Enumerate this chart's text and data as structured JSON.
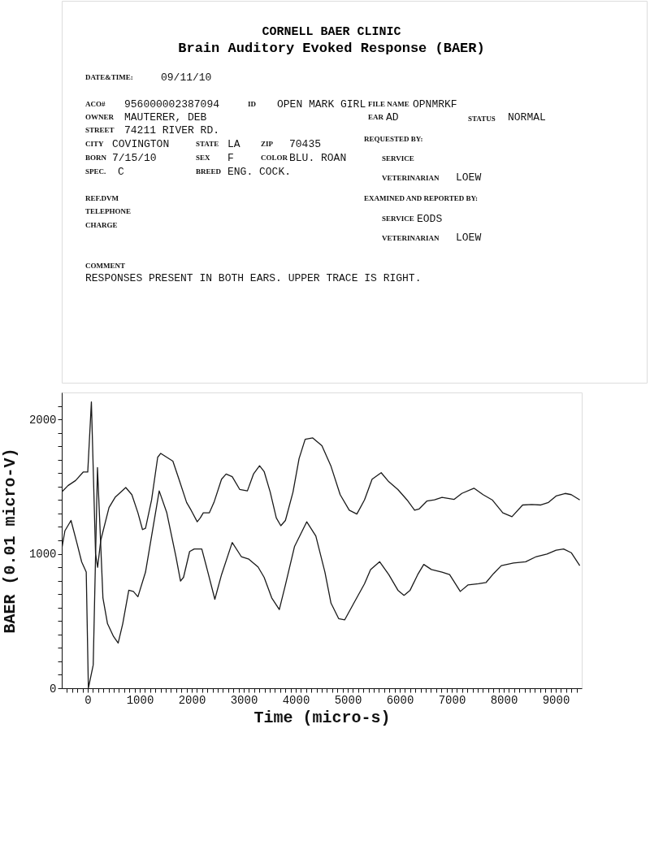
{
  "chart_data": {
    "type": "line",
    "title": "CORNELL BAER CLINIC",
    "subtitle": "Brain Auditory Evoked Response (BAER)",
    "annotations": [
      "DATE&TIME:",
      "09/11/10",
      "ACO#",
      "956000002387094",
      "ID",
      "OPEN MARK GIRL",
      "FILE NAME",
      "OPNMRKF",
      "OWNER",
      "MAUTERER, DEB",
      "EAR",
      "AD",
      "STATUS",
      "NORMAL",
      "STREET",
      "74211 RIVER RD.",
      "CITY",
      "COVINGTON",
      "STATE",
      "LA",
      "ZIP",
      "70435",
      "REQUESTED BY:",
      "BORN",
      "7/15/10",
      "SEX",
      "F",
      "COLOR",
      "BLU. ROAN",
      "SERVICE",
      "SPEC.",
      "C",
      "BREED",
      "ENG. COCK.",
      "VETERINARIAN",
      "LOEW",
      "REF.DVM",
      "EXAMINED AND REPORTED BY:",
      "TELEPHONE",
      "CHARGE",
      "SERVICE",
      "EODS",
      "VETERINARIAN",
      "LOEW",
      "COMMENT",
      "RESPONSES PRESENT IN BOTH EARS.  UPPER TRACE IS RIGHT."
    ],
    "xlabel": "Time (micro-s)",
    "ylabel": "BAER (0.01 micro-V)",
    "xlim": [
      -500,
      9500
    ],
    "ylim": [
      0,
      2200
    ],
    "xticks": [
      {
        "value": -400,
        "label": null
      },
      {
        "value": -300,
        "label": null
      },
      {
        "value": -200,
        "label": null
      },
      {
        "value": -100,
        "label": null
      },
      0,
      {
        "value": 100,
        "label": null
      },
      {
        "value": 200,
        "label": null
      },
      {
        "value": 300,
        "label": null
      },
      {
        "value": 400,
        "label": null
      },
      {
        "value": 500,
        "label": null
      },
      {
        "value": 600,
        "label": null
      },
      {
        "value": 700,
        "label": null
      },
      {
        "value": 800,
        "label": null
      },
      {
        "value": 900,
        "label": null
      },
      1000,
      {
        "value": 1100,
        "label": null
      },
      {
        "value": 1200,
        "label": null
      },
      {
        "value": 1300,
        "label": null
      },
      {
        "value": 1400,
        "label": null
      },
      {
        "value": 1500,
        "label": null
      },
      {
        "value": 1600,
        "label": null
      },
      {
        "value": 1700,
        "label": null
      },
      {
        "value": 1800,
        "label": null
      },
      {
        "value": 1900,
        "label": null
      },
      2000,
      {
        "value": 2100,
        "label": null
      },
      {
        "value": 2200,
        "label": null
      },
      {
        "value": 2300,
        "label": null
      },
      {
        "value": 2400,
        "label": null
      },
      {
        "value": 2500,
        "label": null
      },
      {
        "value": 2600,
        "label": null
      },
      {
        "value": 2700,
        "label": null
      },
      {
        "value": 2800,
        "label": null
      },
      {
        "value": 2900,
        "label": null
      },
      3000,
      {
        "value": 3100,
        "label": null
      },
      {
        "value": 3200,
        "label": null
      },
      {
        "value": 3300,
        "label": null
      },
      {
        "value": 3400,
        "label": null
      },
      {
        "value": 3500,
        "label": null
      },
      {
        "value": 3600,
        "label": null
      },
      {
        "value": 3700,
        "label": null
      },
      {
        "value": 3800,
        "label": null
      },
      {
        "value": 3900,
        "label": null
      },
      4000,
      {
        "value": 4100,
        "label": null
      },
      {
        "value": 4200,
        "label": null
      },
      {
        "value": 4300,
        "label": null
      },
      {
        "value": 4400,
        "label": null
      },
      {
        "value": 4500,
        "label": null
      },
      {
        "value": 4600,
        "label": null
      },
      {
        "value": 4700,
        "label": null
      },
      {
        "value": 4800,
        "label": null
      },
      {
        "value": 4900,
        "label": null
      },
      5000,
      {
        "value": 5100,
        "label": null
      },
      {
        "value": 5200,
        "label": null
      },
      {
        "value": 5300,
        "label": null
      },
      {
        "value": 5400,
        "label": null
      },
      {
        "value": 5500,
        "label": null
      },
      {
        "value": 5600,
        "label": null
      },
      {
        "value": 5700,
        "label": null
      },
      {
        "value": 5800,
        "label": null
      },
      {
        "value": 5900,
        "label": null
      },
      6000,
      {
        "value": 6100,
        "label": null
      },
      {
        "value": 6200,
        "label": null
      },
      {
        "value": 6300,
        "label": null
      },
      {
        "value": 6400,
        "label": null
      },
      {
        "value": 6500,
        "label": null
      },
      {
        "value": 6600,
        "label": null
      },
      {
        "value": 6700,
        "label": null
      },
      {
        "value": 6800,
        "label": null
      },
      {
        "value": 6900,
        "label": null
      },
      7000,
      {
        "value": 7100,
        "label": null
      },
      {
        "value": 7200,
        "label": null
      },
      {
        "value": 7300,
        "label": null
      },
      {
        "value": 7400,
        "label": null
      },
      {
        "value": 7500,
        "label": null
      },
      {
        "value": 7600,
        "label": null
      },
      {
        "value": 7700,
        "label": null
      },
      {
        "value": 7800,
        "label": null
      },
      {
        "value": 7900,
        "label": null
      },
      8000,
      {
        "value": 8100,
        "label": null
      },
      {
        "value": 8200,
        "label": null
      },
      {
        "value": 8300,
        "label": null
      },
      {
        "value": 8400,
        "label": null
      },
      {
        "value": 8500,
        "label": null
      },
      {
        "value": 8600,
        "label": null
      },
      {
        "value": 8700,
        "label": null
      },
      {
        "value": 8800,
        "label": null
      },
      {
        "value": 8900,
        "label": null
      },
      9000,
      {
        "value": 9100,
        "label": null
      },
      {
        "value": 9200,
        "label": null
      },
      {
        "value": 9300,
        "label": null
      },
      {
        "value": 9400,
        "label": null
      }
    ],
    "yticks": [
      0,
      {
        "value": 100,
        "label": null
      },
      {
        "value": 200,
        "label": null
      },
      {
        "value": 300,
        "label": null
      },
      {
        "value": 400,
        "label": null
      },
      {
        "value": 500,
        "label": null
      },
      {
        "value": 600,
        "label": null
      },
      {
        "value": 700,
        "label": null
      },
      {
        "value": 800,
        "label": null
      },
      {
        "value": 900,
        "label": null
      },
      1000,
      {
        "value": 1100,
        "label": null
      },
      {
        "value": 1200,
        "label": null
      },
      {
        "value": 1300,
        "label": null
      },
      {
        "value": 1400,
        "label": null
      },
      {
        "value": 1500,
        "label": null
      },
      {
        "value": 1600,
        "label": null
      },
      {
        "value": 1700,
        "label": null
      },
      {
        "value": 1800,
        "label": null
      },
      {
        "value": 1900,
        "label": null
      },
      2000,
      {
        "value": 2100,
        "label": null
      }
    ],
    "grid": false,
    "legend": false,
    "marker": "none",
    "line_style": "solid",
    "series": [
      {
        "color": "#1a1a1a",
        "x": [
          -500,
          -380,
          -234,
          -88,
          0,
          70,
          150,
          190,
          250,
          409,
          526,
          731,
          848,
          965,
          1053,
          1111,
          1228,
          1345,
          1404,
          1520,
          1637,
          1754,
          1901,
          1988,
          2105,
          2164,
          2222,
          2339,
          2427,
          2573,
          2661,
          2778,
          2924,
          3070,
          3187,
          3304,
          3392,
          3509,
          3626,
          3713,
          3801,
          3947,
          4064,
          4181,
          4327,
          4503,
          4678,
          4854,
          5029,
          5175,
          5322,
          5468,
          5643,
          5789,
          5965,
          6140,
          6286,
          6374,
          6520,
          6667,
          6813,
          7047,
          7193,
          7427,
          7602,
          7778,
          7982,
          8158,
          8363,
          8538,
          8713,
          8860,
          9006,
          9181,
          9298,
          9462
        ],
        "values": [
          1460,
          1507,
          1545,
          1608,
          1608,
          2130,
          1000,
          900,
          1100,
          1344,
          1420,
          1493,
          1440,
          1305,
          1180,
          1190,
          1401,
          1718,
          1747,
          1718,
          1689,
          1555,
          1382,
          1324,
          1238,
          1267,
          1305,
          1305,
          1382,
          1555,
          1593,
          1574,
          1478,
          1468,
          1593,
          1655,
          1612,
          1459,
          1267,
          1209,
          1248,
          1459,
          1708,
          1852,
          1862,
          1804,
          1651,
          1440,
          1324,
          1296,
          1401,
          1555,
          1603,
          1536,
          1478,
          1401,
          1324,
          1334,
          1392,
          1401,
          1420,
          1405,
          1449,
          1488,
          1440,
          1401,
          1305,
          1276,
          1363,
          1367,
          1363,
          1382,
          1430,
          1449,
          1440,
          1401
        ]
      },
      {
        "color": "#1a1a1a",
        "x": [
          -500,
          -439,
          -322,
          -205,
          -117,
          -29,
          12,
          105,
          187,
          234,
          292,
          380,
          497,
          585,
          673,
          789,
          877,
          965,
          1111,
          1228,
          1374,
          1520,
          1696,
          1784,
          1842,
          1959,
          2047,
          2193,
          2310,
          2444,
          2573,
          2778,
          2953,
          3099,
          3275,
          3392,
          3538,
          3684,
          3801,
          3977,
          4211,
          4386,
          4561,
          4678,
          4825,
          4942,
          5117,
          5322,
          5439,
          5614,
          5789,
          5965,
          6082,
          6199,
          6345,
          6462,
          6608,
          6813,
          6959,
          7164,
          7310,
          7515,
          7661,
          7807,
          7953,
          8187,
          8421,
          8626,
          8830,
          9006,
          9152,
          9298,
          9462
        ],
        "values": [
          1036,
          1171,
          1248,
          1075,
          940,
          864,
          0,
          173,
          1641,
          1209,
          672,
          480,
          384,
          336,
          480,
          729,
          720,
          681,
          864,
          1132,
          1468,
          1305,
          979,
          797,
          825,
          1017,
          1036,
          1036,
          864,
          662,
          845,
          1084,
          979,
          960,
          902,
          825,
          672,
          585,
          768,
          1055,
          1238,
          1132,
          864,
          633,
          518,
          509,
          633,
          777,
          883,
          941,
          845,
          729,
          691,
          729,
          845,
          921,
          883,
          864,
          845,
          720,
          768,
          777,
          787,
          854,
          912,
          931,
          941,
          979,
          998,
          1027,
          1036,
          1008,
          912
        ]
      }
    ]
  }
}
